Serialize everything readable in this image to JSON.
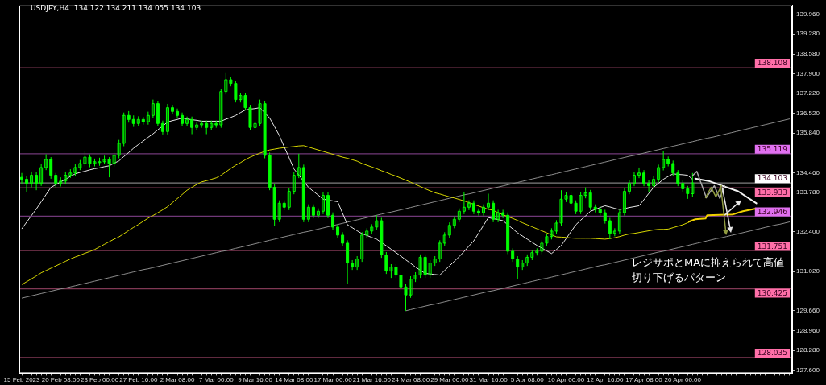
{
  "chart_data": {
    "type": "candlestick",
    "title": "USDJPY,H4  134.122 134.211 134.055 134.103",
    "color": "#00ff00",
    "categories": [
      "15 Feb 2023",
      null,
      null,
      null,
      null,
      null,
      null,
      null,
      "20 Feb 08:00",
      null,
      null,
      null,
      null,
      null,
      null,
      null,
      "23 Feb 00:00",
      null,
      null,
      null,
      null,
      null,
      null,
      null,
      "27 Feb 16:00",
      null,
      null,
      null,
      null,
      null,
      null,
      null,
      "2 Mar 08:00",
      null,
      null,
      null,
      null,
      null,
      null,
      null,
      "7 Mar 00:00",
      null,
      null,
      null,
      null,
      null,
      null,
      null,
      "9 Mar 16:00",
      null,
      null,
      null,
      null,
      null,
      null,
      null,
      "14 Mar 08:00",
      null,
      null,
      null,
      null,
      null,
      null,
      null,
      "17 Mar 00:00",
      null,
      null,
      null,
      null,
      null,
      null,
      null,
      "21 Mar 16:00",
      null,
      null,
      null,
      null,
      null,
      null,
      null,
      "24 Mar 08:00",
      null,
      null,
      null,
      null,
      null,
      null,
      null,
      "29 Mar 00:00",
      null,
      null,
      null,
      null,
      null,
      null,
      null,
      "31 Mar 16:00",
      null,
      null,
      null,
      null,
      null,
      null,
      null,
      "5 Apr 08:00",
      null,
      null,
      null,
      null,
      null,
      null,
      null,
      "10 Apr 00:00",
      null,
      null,
      null,
      null,
      null,
      null,
      null,
      "12 Apr 16:00",
      null,
      null,
      null,
      null,
      null,
      null,
      null,
      "17 Apr 08:00",
      null,
      null,
      null,
      null,
      null,
      null,
      null,
      "20 Apr 00:00",
      null,
      null,
      null,
      null,
      null,
      null,
      null,
      null,
      null,
      null,
      null,
      null,
      null,
      null,
      null,
      null,
      null,
      null,
      null,
      null,
      null,
      null
    ],
    "ohlc": [
      [
        134.3,
        134.45,
        134.05,
        134.23
      ],
      [
        134.23,
        134.35,
        133.8,
        134.09
      ],
      [
        134.09,
        134.5,
        133.95,
        134.37
      ],
      [
        134.37,
        134.48,
        133.85,
        134.09
      ],
      [
        134.09,
        134.75,
        134.0,
        134.64
      ],
      [
        134.64,
        135.1,
        134.55,
        134.92
      ],
      [
        134.92,
        135.0,
        134.25,
        134.37
      ],
      [
        134.37,
        134.45,
        133.95,
        134.09
      ],
      [
        134.09,
        134.3,
        133.98,
        134.17
      ],
      [
        134.17,
        134.5,
        134.05,
        134.37
      ],
      [
        134.37,
        134.58,
        134.28,
        134.45
      ],
      [
        134.45,
        134.75,
        134.35,
        134.64
      ],
      [
        134.64,
        134.9,
        134.55,
        134.78
      ],
      [
        134.78,
        135.2,
        134.68,
        135.0
      ],
      [
        135.0,
        135.1,
        134.65,
        134.78
      ],
      [
        134.78,
        134.95,
        134.68,
        134.84
      ],
      [
        134.84,
        134.98,
        134.7,
        134.84
      ],
      [
        134.84,
        135.05,
        134.75,
        134.92
      ],
      [
        134.92,
        135.0,
        134.3,
        134.78
      ],
      [
        134.78,
        135.15,
        134.68,
        135.06
      ],
      [
        135.06,
        135.6,
        134.96,
        135.48
      ],
      [
        135.48,
        136.55,
        135.38,
        136.45
      ],
      [
        136.45,
        136.6,
        136.2,
        136.31
      ],
      [
        136.31,
        136.45,
        136.05,
        136.17
      ],
      [
        136.17,
        136.42,
        136.07,
        136.31
      ],
      [
        136.31,
        136.4,
        136.13,
        136.23
      ],
      [
        136.23,
        136.58,
        136.13,
        136.45
      ],
      [
        136.45,
        137.0,
        136.35,
        136.86
      ],
      [
        136.86,
        136.96,
        136.07,
        136.17
      ],
      [
        136.17,
        136.27,
        135.79,
        135.89
      ],
      [
        135.89,
        136.85,
        135.79,
        136.72
      ],
      [
        136.72,
        136.82,
        136.49,
        136.59
      ],
      [
        136.59,
        136.69,
        136.35,
        136.45
      ],
      [
        136.45,
        136.55,
        136.07,
        136.17
      ],
      [
        136.17,
        136.41,
        136.07,
        136.31
      ],
      [
        136.31,
        136.41,
        135.8,
        136.03
      ],
      [
        136.03,
        136.22,
        135.93,
        136.12
      ],
      [
        136.12,
        136.27,
        136.02,
        136.17
      ],
      [
        136.17,
        136.27,
        135.8,
        136.03
      ],
      [
        136.03,
        136.27,
        135.93,
        136.17
      ],
      [
        136.17,
        136.27,
        136.02,
        136.12
      ],
      [
        136.12,
        137.38,
        136.02,
        137.28
      ],
      [
        137.28,
        137.92,
        137.18,
        137.69
      ],
      [
        137.69,
        137.8,
        137.46,
        137.56
      ],
      [
        137.56,
        137.66,
        136.9,
        137.0
      ],
      [
        137.0,
        137.24,
        136.9,
        137.14
      ],
      [
        137.14,
        137.24,
        136.62,
        136.72
      ],
      [
        136.72,
        136.82,
        135.93,
        136.03
      ],
      [
        136.03,
        136.27,
        135.93,
        136.17
      ],
      [
        136.17,
        137.0,
        136.07,
        136.86
      ],
      [
        136.86,
        136.96,
        134.96,
        135.06
      ],
      [
        135.06,
        135.16,
        133.85,
        133.95
      ],
      [
        133.95,
        134.05,
        132.6,
        132.84
      ],
      [
        132.84,
        133.5,
        132.74,
        133.4
      ],
      [
        133.4,
        133.5,
        133.16,
        133.26
      ],
      [
        133.26,
        133.91,
        133.16,
        133.81
      ],
      [
        133.81,
        134.47,
        133.71,
        134.37
      ],
      [
        134.37,
        135.12,
        134.27,
        134.64
      ],
      [
        134.64,
        134.74,
        132.74,
        132.84
      ],
      [
        132.84,
        133.36,
        132.74,
        133.26
      ],
      [
        133.26,
        133.36,
        132.88,
        132.98
      ],
      [
        132.98,
        133.22,
        132.88,
        133.12
      ],
      [
        133.12,
        133.77,
        133.02,
        133.67
      ],
      [
        133.67,
        133.77,
        132.88,
        132.98
      ],
      [
        132.98,
        133.08,
        132.47,
        132.57
      ],
      [
        132.57,
        132.67,
        132.19,
        132.29
      ],
      [
        132.29,
        132.39,
        131.91,
        132.01
      ],
      [
        132.01,
        132.11,
        130.6,
        131.32
      ],
      [
        131.32,
        131.42,
        131.08,
        131.18
      ],
      [
        131.18,
        131.56,
        131.08,
        131.46
      ],
      [
        131.46,
        132.39,
        131.36,
        132.29
      ],
      [
        132.29,
        132.53,
        132.19,
        132.43
      ],
      [
        132.43,
        132.67,
        132.33,
        132.57
      ],
      [
        132.57,
        132.98,
        132.47,
        132.79
      ],
      [
        132.79,
        132.89,
        131.5,
        131.6
      ],
      [
        131.6,
        131.7,
        130.94,
        131.04
      ],
      [
        131.04,
        131.28,
        130.8,
        131.18
      ],
      [
        131.18,
        131.28,
        130.8,
        130.9
      ],
      [
        130.9,
        131.0,
        130.3,
        130.49
      ],
      [
        130.49,
        130.59,
        129.66,
        130.21
      ],
      [
        130.21,
        130.86,
        130.11,
        130.76
      ],
      [
        130.76,
        131.0,
        130.66,
        130.9
      ],
      [
        130.9,
        131.62,
        130.8,
        131.52
      ],
      [
        131.52,
        131.62,
        130.8,
        130.9
      ],
      [
        130.9,
        131.42,
        130.8,
        131.32
      ],
      [
        131.32,
        131.56,
        131.22,
        131.46
      ],
      [
        131.46,
        132.11,
        131.36,
        132.01
      ],
      [
        132.01,
        132.39,
        131.91,
        132.29
      ],
      [
        132.29,
        132.73,
        132.19,
        132.63
      ],
      [
        132.63,
        132.94,
        132.53,
        132.84
      ],
      [
        132.84,
        133.22,
        132.74,
        133.12
      ],
      [
        133.12,
        133.8,
        133.02,
        133.26
      ],
      [
        133.26,
        133.5,
        133.16,
        133.4
      ],
      [
        133.4,
        133.5,
        133.02,
        133.12
      ],
      [
        133.12,
        133.22,
        132.97,
        133.07
      ],
      [
        133.07,
        133.36,
        132.97,
        133.26
      ],
      [
        133.26,
        133.73,
        133.16,
        133.4
      ],
      [
        133.4,
        133.5,
        132.74,
        132.84
      ],
      [
        132.84,
        133.17,
        132.74,
        133.07
      ],
      [
        133.07,
        133.17,
        132.88,
        132.98
      ],
      [
        132.98,
        133.08,
        131.63,
        131.73
      ],
      [
        131.73,
        131.83,
        131.36,
        131.46
      ],
      [
        131.46,
        131.56,
        130.77,
        131.18
      ],
      [
        131.18,
        131.42,
        131.08,
        131.32
      ],
      [
        131.32,
        131.62,
        131.22,
        131.52
      ],
      [
        131.52,
        131.78,
        131.42,
        131.68
      ],
      [
        131.68,
        131.83,
        131.58,
        131.73
      ],
      [
        131.73,
        132.11,
        131.63,
        132.01
      ],
      [
        132.01,
        132.34,
        131.91,
        132.24
      ],
      [
        132.24,
        132.53,
        132.14,
        132.43
      ],
      [
        132.43,
        132.81,
        132.33,
        132.71
      ],
      [
        132.71,
        133.85,
        132.61,
        133.54
      ],
      [
        133.54,
        133.77,
        133.44,
        133.67
      ],
      [
        133.67,
        133.77,
        133.3,
        133.4
      ],
      [
        133.4,
        133.5,
        133.02,
        133.12
      ],
      [
        133.12,
        133.77,
        133.02,
        133.67
      ],
      [
        133.67,
        133.95,
        133.57,
        133.76
      ],
      [
        133.76,
        133.86,
        133.16,
        133.26
      ],
      [
        133.26,
        133.36,
        133.08,
        133.18
      ],
      [
        133.18,
        133.28,
        132.97,
        133.07
      ],
      [
        133.07,
        133.17,
        132.69,
        132.79
      ],
      [
        132.79,
        132.89,
        132.15,
        132.35
      ],
      [
        132.35,
        132.53,
        132.25,
        132.43
      ],
      [
        132.43,
        133.17,
        132.33,
        133.07
      ],
      [
        133.07,
        133.91,
        132.97,
        133.81
      ],
      [
        133.81,
        134.19,
        133.71,
        134.09
      ],
      [
        134.09,
        134.47,
        133.99,
        134.37
      ],
      [
        134.37,
        134.64,
        134.27,
        134.45
      ],
      [
        134.45,
        134.55,
        133.99,
        134.09
      ],
      [
        134.09,
        134.19,
        133.8,
        134.01
      ],
      [
        134.01,
        134.33,
        133.91,
        134.23
      ],
      [
        134.23,
        134.74,
        134.13,
        134.64
      ],
      [
        134.64,
        135.2,
        134.54,
        134.92
      ],
      [
        134.92,
        135.02,
        134.68,
        134.78
      ],
      [
        134.78,
        134.88,
        134.35,
        134.45
      ],
      [
        134.45,
        134.55,
        133.99,
        134.09
      ],
      [
        134.09,
        134.19,
        133.8,
        133.9
      ],
      [
        133.9,
        134.0,
        133.55,
        133.73
      ],
      [
        133.73,
        134.45,
        133.63,
        134.1
      ],
      null,
      null,
      null,
      null,
      null,
      null,
      null,
      null,
      null,
      null,
      null,
      null,
      null,
      null,
      null,
      null,
      null,
      null,
      null,
      null
    ],
    "series": [
      {
        "type": "line",
        "color": "#e8e8e8",
        "values": [
          132.51,
          132.74,
          132.97,
          133.2,
          133.45,
          133.7,
          133.95,
          134.04,
          134.14,
          134.23,
          134.33,
          134.42,
          134.47,
          134.51,
          134.56,
          134.6,
          134.63,
          134.67,
          134.7,
          134.79,
          134.87,
          135.02,
          135.16,
          135.31,
          135.44,
          135.56,
          135.69,
          135.81,
          135.95,
          136.08,
          136.22,
          136.27,
          136.31,
          136.36,
          136.33,
          136.3,
          136.28,
          136.25,
          136.25,
          136.25,
          136.25,
          136.25,
          136.32,
          136.38,
          136.45,
          136.55,
          136.64,
          136.67,
          136.69,
          136.72,
          136.54,
          136.36,
          136.06,
          135.75,
          135.36,
          134.98,
          134.59,
          134.38,
          134.16,
          133.95,
          133.81,
          133.68,
          133.54,
          133.51,
          133.48,
          133.45,
          133.05,
          132.65,
          132.55,
          132.44,
          132.34,
          132.28,
          132.21,
          132.15,
          132.03,
          131.92,
          131.8,
          131.68,
          131.56,
          131.43,
          131.31,
          131.18,
          131.07,
          130.96,
          130.94,
          130.92,
          130.9,
          131.06,
          131.22,
          131.38,
          131.54,
          131.72,
          131.91,
          132.09,
          132.36,
          132.63,
          132.9,
          132.86,
          132.83,
          132.79,
          132.65,
          132.51,
          132.37,
          132.26,
          132.15,
          132.04,
          131.93,
          131.84,
          131.74,
          131.65,
          131.79,
          131.93,
          132.17,
          132.41,
          132.65,
          132.81,
          132.96,
          133.12,
          133.18,
          133.25,
          133.31,
          133.27,
          133.22,
          133.18,
          133.21,
          133.25,
          133.28,
          133.31,
          133.52,
          133.74,
          133.95,
          134.09,
          134.23,
          134.33,
          134.42,
          134.4,
          134.39,
          134.37,
          134.23,
          null,
          null,
          null,
          null,
          null,
          null,
          null,
          null,
          null,
          null,
          null,
          null,
          null,
          null,
          null,
          null,
          null,
          null,
          null,
          null
        ]
      },
      {
        "type": "line",
        "color": "#d8d800",
        "values": [
          130.57,
          130.67,
          130.77,
          130.87,
          130.98,
          131.06,
          131.14,
          131.22,
          131.3,
          131.38,
          131.46,
          131.53,
          131.59,
          131.66,
          131.72,
          131.79,
          131.88,
          131.97,
          132.06,
          132.15,
          132.23,
          132.34,
          132.45,
          132.56,
          132.66,
          132.77,
          132.88,
          132.97,
          133.07,
          133.17,
          133.28,
          133.42,
          133.56,
          133.7,
          133.85,
          133.95,
          134.05,
          134.14,
          134.18,
          134.23,
          134.28,
          134.37,
          134.49,
          134.61,
          134.72,
          134.81,
          134.91,
          135.0,
          135.07,
          135.14,
          135.2,
          135.25,
          135.28,
          135.31,
          135.33,
          135.35,
          135.37,
          135.39,
          135.4,
          135.35,
          135.3,
          135.25,
          135.2,
          135.15,
          135.1,
          135.05,
          135.0,
          134.96,
          134.91,
          134.86,
          134.78,
          134.72,
          134.66,
          134.6,
          134.53,
          134.47,
          134.4,
          134.34,
          134.27,
          134.2,
          134.13,
          134.05,
          133.98,
          133.9,
          133.83,
          133.76,
          133.72,
          133.67,
          133.62,
          133.58,
          133.53,
          133.48,
          133.42,
          133.36,
          133.3,
          133.24,
          133.19,
          133.15,
          133.07,
          133.0,
          132.93,
          132.87,
          132.8,
          132.72,
          132.65,
          132.58,
          132.51,
          132.44,
          132.37,
          132.3,
          132.23,
          132.22,
          132.21,
          132.19,
          132.18,
          132.18,
          132.18,
          132.18,
          132.17,
          132.16,
          132.15,
          132.17,
          132.2,
          132.24,
          132.29,
          132.33,
          132.35,
          132.38,
          132.41,
          132.44,
          132.47,
          132.49,
          132.49,
          132.5,
          132.55,
          132.6,
          132.65,
          132.72,
          132.79,
          null,
          null,
          null,
          null,
          null,
          null,
          null,
          null,
          null,
          null,
          null,
          null,
          null,
          null,
          null,
          null,
          null,
          null,
          null,
          null
        ]
      },
      {
        "type": "line",
        "color": "#8c8c8c",
        "values": [
          130.1,
          130.14,
          130.18,
          130.22,
          130.26,
          130.3,
          130.34,
          130.38,
          130.42,
          130.45,
          130.49,
          130.53,
          130.57,
          130.61,
          130.65,
          130.69,
          130.73,
          130.77,
          130.81,
          130.85,
          130.89,
          130.93,
          130.97,
          131.01,
          131.05,
          131.09,
          131.12,
          131.16,
          131.2,
          131.24,
          131.28,
          131.32,
          131.36,
          131.4,
          131.44,
          131.48,
          131.52,
          131.56,
          131.6,
          131.64,
          131.68,
          131.72,
          131.75,
          131.79,
          131.83,
          131.87,
          131.91,
          131.95,
          131.99,
          132.03,
          132.07,
          132.11,
          132.15,
          132.19,
          132.23,
          132.27,
          132.31,
          132.35,
          132.39,
          132.42,
          132.46,
          132.5,
          132.54,
          132.58,
          132.62,
          132.66,
          132.7,
          132.74,
          132.78,
          132.82,
          132.86,
          132.9,
          132.94,
          132.98,
          133.02,
          133.06,
          133.09,
          133.13,
          133.17,
          133.21,
          133.25,
          133.29,
          133.33,
          133.37,
          133.41,
          133.45,
          133.49,
          133.53,
          133.57,
          133.61,
          133.65,
          133.69,
          133.72,
          133.76,
          133.8,
          133.84,
          133.88,
          133.92,
          133.96,
          134.0,
          134.04,
          134.08,
          134.12,
          134.16,
          134.2,
          134.24,
          134.28,
          134.32,
          134.36,
          134.39,
          134.43,
          134.47,
          134.51,
          134.55,
          134.59,
          134.63,
          134.67,
          134.71,
          134.75,
          134.79,
          134.83,
          134.87,
          134.91,
          134.95,
          134.99,
          135.03,
          135.06,
          135.1,
          135.14,
          135.18,
          135.22,
          135.26,
          135.3,
          135.34,
          135.38,
          135.42,
          135.46,
          135.5,
          135.54,
          135.58,
          135.62,
          135.66,
          135.69,
          135.73,
          135.77,
          135.81,
          135.85,
          135.89,
          135.93,
          135.97,
          136.01,
          136.05,
          136.09,
          136.13,
          136.17,
          136.21,
          136.25,
          136.29,
          136.33
        ]
      },
      {
        "type": "line",
        "color": "#8c8c8c",
        "values": [
          null,
          null,
          null,
          null,
          null,
          null,
          null,
          null,
          null,
          null,
          null,
          null,
          null,
          null,
          null,
          null,
          null,
          null,
          null,
          null,
          null,
          null,
          null,
          null,
          null,
          null,
          null,
          null,
          null,
          null,
          null,
          null,
          null,
          null,
          null,
          null,
          null,
          null,
          null,
          null,
          null,
          null,
          null,
          null,
          null,
          null,
          null,
          null,
          null,
          null,
          null,
          null,
          null,
          null,
          null,
          null,
          null,
          null,
          null,
          null,
          null,
          null,
          null,
          null,
          null,
          null,
          null,
          null,
          null,
          null,
          null,
          null,
          null,
          null,
          null,
          null,
          null,
          null,
          null,
          129.66,
          129.7,
          129.74,
          129.78,
          129.82,
          129.86,
          129.89,
          129.93,
          129.97,
          130.01,
          130.05,
          130.09,
          130.13,
          130.17,
          130.21,
          130.25,
          130.29,
          130.33,
          130.36,
          130.4,
          130.44,
          130.48,
          130.52,
          130.56,
          130.6,
          130.64,
          130.68,
          130.72,
          130.76,
          130.79,
          130.83,
          130.87,
          130.91,
          130.95,
          130.99,
          131.03,
          131.07,
          131.11,
          131.15,
          131.19,
          131.23,
          131.26,
          131.3,
          131.34,
          131.38,
          131.42,
          131.46,
          131.5,
          131.54,
          131.58,
          131.62,
          131.66,
          131.7,
          131.73,
          131.77,
          131.81,
          131.85,
          131.89,
          131.93,
          131.97,
          132.01,
          132.05,
          132.09,
          132.13,
          132.17,
          132.2,
          132.24,
          132.28,
          132.32,
          132.36,
          132.4,
          132.44,
          132.48,
          132.52,
          132.56,
          132.6,
          132.64,
          132.67,
          132.71,
          132.75
        ]
      }
    ],
    "ylim": [
      127.49,
      140.27
    ],
    "yticks": [
      {
        "value": 127.6,
        "label": "127.600"
      },
      {
        "value": 128.28,
        "label": "128.280"
      },
      {
        "value": 128.96,
        "label": "128.960"
      },
      {
        "value": 129.66,
        "label": "129.660"
      },
      {
        "value": 131.02,
        "label": "131.020"
      },
      {
        "value": 132.4,
        "label": "132.400"
      },
      {
        "value": 133.78,
        "label": "133.780"
      },
      {
        "value": 134.46,
        "label": "134.460"
      },
      {
        "value": 135.84,
        "label": "135.840"
      },
      {
        "value": 136.52,
        "label": "136.520"
      },
      {
        "value": 137.22,
        "label": "137.220"
      },
      {
        "value": 137.9,
        "label": "137.900"
      },
      {
        "value": 138.58,
        "label": "138.580"
      },
      {
        "value": 139.28,
        "label": "139.280"
      },
      {
        "value": 139.96,
        "label": "139.960"
      }
    ],
    "ref_lines": [
      {
        "axis": "y",
        "value": 138.108,
        "label": "138.108",
        "color": "#ff6fa8"
      },
      {
        "axis": "y",
        "value": 135.119,
        "label": "135.119",
        "color": "#e070f0"
      },
      {
        "axis": "y",
        "value": 134.103,
        "label": "134.103",
        "color": "#ffffff"
      },
      {
        "axis": "y",
        "value": 133.933,
        "label": "133.933",
        "color": "#ff6fa8"
      },
      {
        "axis": "y",
        "value": 132.946,
        "label": "132.946",
        "color": "#e070f0"
      },
      {
        "axis": "y",
        "value": 131.751,
        "label": "131.751",
        "color": "#ff6fa8"
      },
      {
        "axis": "y",
        "value": 130.425,
        "label": "130.425",
        "color": "#ff6fa8"
      },
      {
        "axis": "y",
        "value": 128.035,
        "label": "128.035",
        "color": "#ff6fa8"
      }
    ],
    "annotations": [
      "レジサポとMAに抑えられて高値切り下げるパターン"
    ]
  }
}
